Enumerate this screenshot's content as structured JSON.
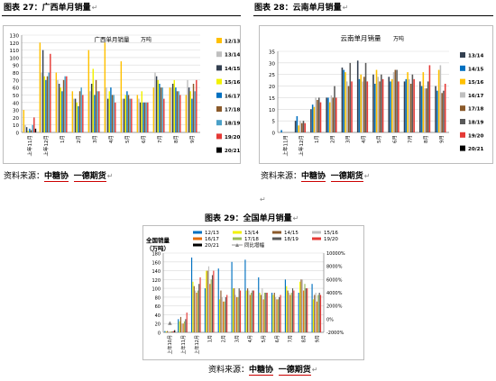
{
  "return_mark": "↵",
  "page_mark": "↵",
  "figures": [
    {
      "caption": "图表 27：广西单月销量",
      "source_label": "资料来源：",
      "source_org": "中糖协",
      "source_sep": "  ",
      "source_org2": "一德期货"
    },
    {
      "caption": "图表 28：云南单月销量",
      "source_label": "资料来源：",
      "source_org": "中糖协",
      "source_sep": "  ",
      "source_org2": "一德期货"
    },
    {
      "caption": "图表 29：全国单月销量",
      "source_label": "资料来源：",
      "source_org": "中糖协",
      "source_sep": "  ",
      "source_org2": "一德期货"
    }
  ],
  "chart_data": [
    {
      "type": "bar",
      "title": "广西单月销量",
      "title_unit": "万吨",
      "categories": [
        "上年11月",
        "上年12月",
        "1月",
        "2月",
        "3月",
        "4月",
        "5月",
        "6月",
        "7月",
        "8月",
        "9月"
      ],
      "ylim": [
        0,
        130
      ],
      "yticks": [
        0,
        10,
        20,
        30,
        40,
        50,
        60,
        70,
        80,
        90,
        100,
        110,
        120,
        130
      ],
      "legend_position": "right",
      "series": [
        {
          "name": "12/13",
          "color": "#ffc000",
          "values": [
            30,
            120,
            80,
            55,
            110,
            120,
            95,
            50,
            60,
            60,
            50
          ]
        },
        {
          "name": "13/14",
          "color": "#bfbfbf",
          "values": [
            10,
            80,
            70,
            45,
            55,
            60,
            45,
            45,
            80,
            60,
            70
          ]
        },
        {
          "name": "14/15",
          "color": "#333f50",
          "values": [
            7,
            110,
            65,
            45,
            65,
            45,
            45,
            40,
            75,
            65,
            60
          ]
        },
        {
          "name": "15/16",
          "color": "#f2f200",
          "values": [
            2,
            75,
            60,
            40,
            85,
            55,
            50,
            55,
            70,
            70,
            55
          ]
        },
        {
          "name": "16/17",
          "color": "#0070c0",
          "values": [
            5,
            70,
            55,
            35,
            50,
            60,
            55,
            40,
            65,
            60,
            45
          ]
        },
        {
          "name": "17/18",
          "color": "#8b5a2b",
          "values": [
            3,
            75,
            70,
            55,
            70,
            50,
            50,
            40,
            60,
            55,
            65
          ]
        },
        {
          "name": "18/19",
          "color": "#4aa0c8",
          "values": [
            10,
            80,
            75,
            60,
            55,
            50,
            45,
            40,
            60,
            55,
            55
          ]
        },
        {
          "name": "19/20",
          "color": "#e53935",
          "values": [
            20,
            105,
            75,
            50,
            55,
            40,
            45,
            40,
            45,
            50,
            70
          ]
        },
        {
          "name": "20/21",
          "color": "#000000",
          "values": [
            5,
            null,
            null,
            null,
            null,
            null,
            null,
            null,
            null,
            null,
            null
          ]
        }
      ]
    },
    {
      "type": "bar",
      "title": "云南单月销量",
      "title_unit": "万吨",
      "categories": [
        "上年11月",
        "上年12月",
        "1月",
        "2月",
        "3月",
        "4月",
        "5月",
        "6月",
        "7月",
        "8月",
        "9月"
      ],
      "ylim": [
        0,
        35
      ],
      "yticks": [
        0,
        5,
        10,
        15,
        20,
        25,
        30,
        35
      ],
      "legend_position": "right",
      "series": [
        {
          "name": "13/14",
          "color": "#333f50",
          "values": [
            0,
            5,
            10,
            15,
            28,
            31,
            25,
            24,
            22,
            22,
            20
          ]
        },
        {
          "name": "14/15",
          "color": "#0070c0",
          "values": [
            1,
            7,
            12,
            15,
            27,
            23,
            21,
            22,
            23,
            20,
            18
          ]
        },
        {
          "name": "15/16",
          "color": "#ffc000",
          "values": [
            0,
            3,
            11,
            13,
            26,
            25,
            27,
            23,
            26,
            26,
            27
          ]
        },
        {
          "name": "16/17",
          "color": "#bfbfbf",
          "values": [
            0,
            5,
            15,
            16,
            22,
            22,
            24,
            26,
            23,
            19,
            29
          ]
        },
        {
          "name": "17/18",
          "color": "#8b5a2b",
          "values": [
            0,
            4,
            14,
            15,
            20,
            24,
            22,
            27,
            21,
            19,
            17
          ]
        },
        {
          "name": "18/19",
          "color": "#595959",
          "values": [
            0,
            5,
            15,
            20,
            30,
            30,
            25,
            27,
            25,
            22,
            18
          ]
        },
        {
          "name": "19/20",
          "color": "#e53935",
          "values": [
            0,
            4,
            13,
            15,
            22,
            22,
            23,
            22,
            23,
            29,
            21
          ]
        },
        {
          "name": "20/21",
          "color": "#000000",
          "values": [
            0,
            null,
            null,
            null,
            null,
            null,
            null,
            null,
            null,
            null,
            null
          ]
        }
      ]
    },
    {
      "type": "bar",
      "title": "全国销量",
      "ylabel": "（万吨）",
      "categories": [
        "上年10月",
        "上年11月",
        "上年12月",
        "1月",
        "2月",
        "3月",
        "4月",
        "5月",
        "6月",
        "7月",
        "8月",
        "9月"
      ],
      "ylim": [
        0,
        180
      ],
      "yticks": [
        0,
        20,
        40,
        60,
        80,
        100,
        120,
        140,
        160,
        180
      ],
      "y2lim": [
        -2000,
        10000
      ],
      "y2ticks": [
        "-2000%",
        "0%",
        "2000%",
        "4000%",
        "6000%",
        "8000%",
        "10000%"
      ],
      "y2values": [
        -2000,
        0,
        2000,
        4000,
        6000,
        8000,
        10000
      ],
      "legend_position": "top",
      "series": [
        {
          "name": "12/13",
          "color": "#0070c0",
          "values": [
            3,
            30,
            170,
            100,
            145,
            160,
            165,
            125,
            90,
            120,
            90,
            110
          ]
        },
        {
          "name": "13/14",
          "color": "#f2f200",
          "values": [
            2,
            25,
            115,
            140,
            75,
            100,
            95,
            90,
            85,
            105,
            115,
            75
          ]
        },
        {
          "name": "14/15",
          "color": "#8b5a2b",
          "values": [
            3,
            35,
            105,
            140,
            95,
            100,
            100,
            85,
            90,
            95,
            120,
            85
          ]
        },
        {
          "name": "15/16",
          "color": "#c0c0c0",
          "values": [
            2,
            20,
            95,
            150,
            80,
            85,
            95,
            100,
            80,
            90,
            120,
            90
          ]
        },
        {
          "name": "16/17",
          "color": "#e36c09",
          "values": [
            1,
            20,
            90,
            110,
            70,
            80,
            85,
            75,
            75,
            85,
            95,
            70
          ]
        },
        {
          "name": "17/18",
          "color": "#9bbb59",
          "values": [
            2,
            25,
            95,
            120,
            70,
            80,
            90,
            90,
            75,
            90,
            110,
            85
          ]
        },
        {
          "name": "18/19",
          "color": "#595959",
          "values": [
            2,
            30,
            110,
            130,
            80,
            100,
            95,
            90,
            80,
            100,
            100,
            90
          ]
        },
        {
          "name": "19/20",
          "color": "#e53935",
          "values": [
            3,
            45,
            125,
            140,
            85,
            95,
            95,
            90,
            85,
            95,
            100,
            85
          ]
        },
        {
          "name": "20/21",
          "color": "#000000",
          "values": [
            5,
            null,
            null,
            null,
            null,
            null,
            null,
            null,
            null,
            null,
            null,
            null
          ]
        },
        {
          "name": "同比增幅",
          "type": "line",
          "axis": "right",
          "color": "#7f7f7f",
          "values": [
            -600,
            null,
            null,
            null,
            null,
            null,
            null,
            null,
            null,
            null,
            null,
            null
          ]
        }
      ]
    }
  ]
}
